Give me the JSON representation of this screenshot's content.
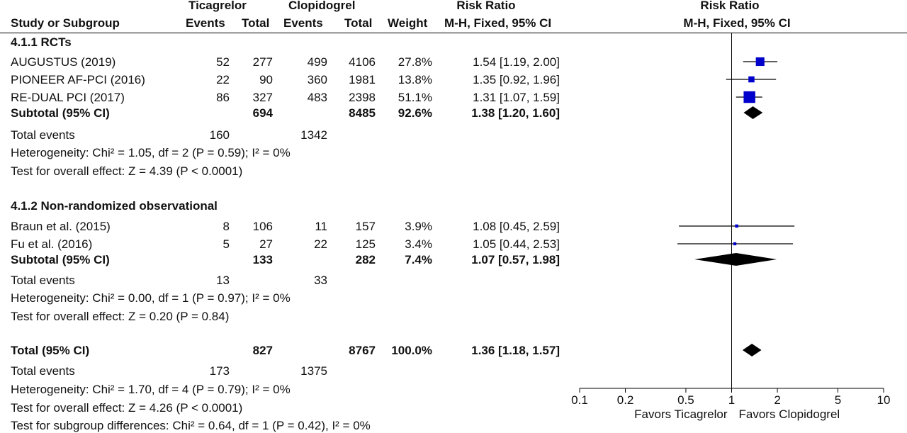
{
  "header": {
    "col_study": "Study or Subgroup",
    "group1": "Ticagrelor",
    "group2": "Clopidogrel",
    "events": "Events",
    "total": "Total",
    "weight": "Weight",
    "rr_title": "Risk Ratio",
    "rr_method": "M-H, Fixed, 95% CI",
    "plot_title": "Risk Ratio",
    "plot_method": "M-H, Fixed, 95% CI"
  },
  "subgroups": [
    {
      "title": "4.1.1 RCTs",
      "studies": [
        {
          "name": "AUGUSTUS (2019)",
          "e1": "52",
          "n1": "277",
          "e2": "499",
          "n2": "4106",
          "weight": "27.8%",
          "ci": "1.54 [1.19, 2.00]"
        },
        {
          "name": "PIONEER AF-PCI (2016)",
          "e1": "22",
          "n1": "90",
          "e2": "360",
          "n2": "1981",
          "weight": "13.8%",
          "ci": "1.35 [0.92, 1.96]"
        },
        {
          "name": "RE-DUAL PCI (2017)",
          "e1": "86",
          "n1": "327",
          "e2": "483",
          "n2": "2398",
          "weight": "51.1%",
          "ci": "1.31 [1.07, 1.59]"
        }
      ],
      "subtotal": {
        "label": "Subtotal (95% CI)",
        "n1": "694",
        "n2": "8485",
        "weight": "92.6%",
        "ci": "1.38 [1.20, 1.60]"
      },
      "total_events": {
        "label": "Total events",
        "e1": "160",
        "e2": "1342"
      },
      "heterogeneity": "Heterogeneity: Chi² = 1.05, df = 2 (P = 0.59); I² = 0%",
      "overall": "Test for overall effect: Z = 4.39 (P < 0.0001)"
    },
    {
      "title": "4.1.2 Non-randomized observational",
      "studies": [
        {
          "name": "Braun et al. (2015)",
          "e1": "8",
          "n1": "106",
          "e2": "11",
          "n2": "157",
          "weight": "3.9%",
          "ci": "1.08 [0.45, 2.59]"
        },
        {
          "name": "Fu et al. (2016)",
          "e1": "5",
          "n1": "27",
          "e2": "22",
          "n2": "125",
          "weight": "3.4%",
          "ci": "1.05 [0.44, 2.53]"
        }
      ],
      "subtotal": {
        "label": "Subtotal (95% CI)",
        "n1": "133",
        "n2": "282",
        "weight": "7.4%",
        "ci": "1.07 [0.57, 1.98]"
      },
      "total_events": {
        "label": "Total events",
        "e1": "13",
        "e2": "33"
      },
      "heterogeneity": "Heterogeneity: Chi² = 0.00, df = 1 (P = 0.97); I² = 0%",
      "overall": "Test for overall effect: Z = 0.20 (P = 0.84)"
    }
  ],
  "total": {
    "label": "Total (95% CI)",
    "n1": "827",
    "n2": "8767",
    "weight": "100.0%",
    "ci": "1.36 [1.18, 1.57]"
  },
  "total_events": {
    "label": "Total events",
    "e1": "173",
    "e2": "1375"
  },
  "heterogeneity": "Heterogeneity: Chi² = 1.70, df = 4 (P = 0.79); I² = 0%",
  "overall": "Test for overall effect: Z = 4.26 (P < 0.0001)",
  "subgroup_diff": "Test for subgroup differences: Chi² = 0.64, df = 1 (P = 0.42), I² = 0%",
  "chart_data": {
    "type": "forest",
    "title": "Risk Ratio",
    "method": "M-H, Fixed, 95% CI",
    "scale": "log",
    "xlim": [
      0.1,
      10
    ],
    "ticks": [
      0.1,
      0.2,
      0.5,
      1,
      2,
      5,
      10
    ],
    "tick_labels": [
      "0.1",
      "0.2",
      "0.5",
      "1",
      "2",
      "5",
      "10"
    ],
    "null_line": 1,
    "favors_left": "Favors Ticagrelor",
    "favors_right": "Favors Clopidogrel",
    "marker_color": "#0000cc",
    "studies": [
      {
        "name": "AUGUSTUS (2019)",
        "rr": 1.54,
        "lo": 1.19,
        "hi": 2.0,
        "weight": 27.8
      },
      {
        "name": "PIONEER AF-PCI (2016)",
        "rr": 1.35,
        "lo": 0.92,
        "hi": 1.96,
        "weight": 13.8
      },
      {
        "name": "RE-DUAL PCI (2017)",
        "rr": 1.31,
        "lo": 1.07,
        "hi": 1.59,
        "weight": 51.1
      },
      {
        "name": "Braun et al. (2015)",
        "rr": 1.08,
        "lo": 0.45,
        "hi": 2.59,
        "weight": 3.9
      },
      {
        "name": "Fu et al. (2016)",
        "rr": 1.05,
        "lo": 0.44,
        "hi": 2.53,
        "weight": 3.4
      }
    ],
    "summaries": [
      {
        "name": "Subtotal 4.1.1 RCTs",
        "rr": 1.38,
        "lo": 1.2,
        "hi": 1.6
      },
      {
        "name": "Subtotal 4.1.2 Non-randomized observational",
        "rr": 1.07,
        "lo": 0.57,
        "hi": 1.98
      },
      {
        "name": "Total",
        "rr": 1.36,
        "lo": 1.18,
        "hi": 1.57
      }
    ]
  }
}
